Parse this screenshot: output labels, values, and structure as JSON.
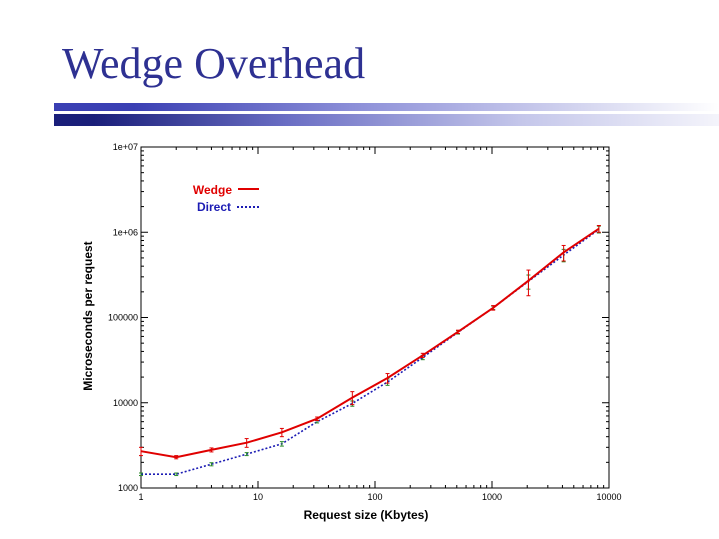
{
  "slide": {
    "title": "Wedge Overhead"
  },
  "colors": {
    "title": "#2e3192",
    "wedge": "#e00000",
    "direct": "#1c1cb4",
    "errorbar_wedge": "#e00000",
    "errorbar_direct": "#2a8a2a"
  },
  "chart_data": {
    "type": "line",
    "xlabel": "Request size (Kbytes)",
    "ylabel": "Microseconds per request",
    "xscale": "log",
    "yscale": "log",
    "xlim": [
      1,
      10000
    ],
    "ylim": [
      1000,
      10000000
    ],
    "x_ticks": [
      1,
      10,
      100,
      1000,
      10000
    ],
    "x_tick_labels": [
      "1",
      "10",
      "100",
      "1000",
      "10000"
    ],
    "y_ticks": [
      1000,
      10000,
      100000,
      1000000,
      10000000
    ],
    "y_tick_labels": [
      "1000",
      "10000",
      "100000",
      "1e+06",
      "1e+07"
    ],
    "legend_position": "top-left",
    "series": [
      {
        "name": "Wedge",
        "style": "solid",
        "x": [
          1,
          2,
          4,
          8,
          16,
          32,
          64,
          128,
          256,
          512,
          1024,
          2048,
          4096,
          8192
        ],
        "y": [
          2700,
          2300,
          2800,
          3400,
          4500,
          6500,
          11500,
          19500,
          36000,
          68000,
          130000,
          270000,
          580000,
          1100000
        ],
        "err": [
          300,
          100,
          150,
          400,
          500,
          300,
          2000,
          2500,
          2000,
          3000,
          8000,
          90000,
          120000,
          100000
        ]
      },
      {
        "name": "Direct",
        "style": "dotted",
        "x": [
          1,
          2,
          4,
          8,
          16,
          32,
          64,
          128,
          256,
          512,
          1024,
          2048,
          4096,
          8192
        ],
        "y": [
          1450,
          1450,
          1900,
          2500,
          3300,
          6000,
          9800,
          17500,
          34000,
          67000,
          130000,
          265000,
          540000,
          1080000
        ],
        "err": [
          50,
          50,
          80,
          100,
          200,
          200,
          700,
          1500,
          2000,
          3000,
          6000,
          50000,
          90000,
          100000
        ]
      }
    ]
  }
}
